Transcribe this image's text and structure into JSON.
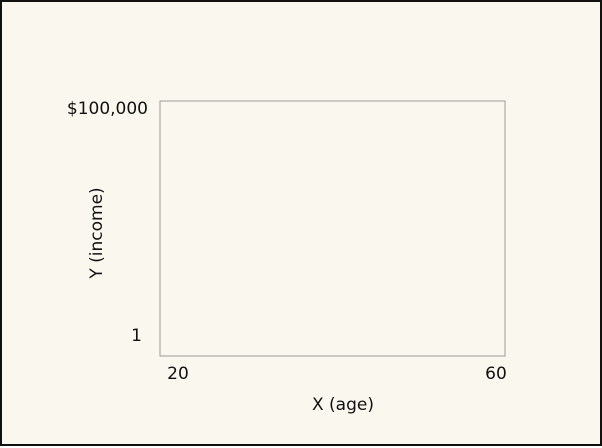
{
  "chart_data": {
    "type": "scatter",
    "xlabel": "X (age)",
    "ylabel": "Y (income)",
    "xlim": [
      20,
      60
    ],
    "ylim": [
      1,
      100000
    ],
    "x_ticks": [
      "20",
      "60"
    ],
    "y_ticks": [
      "1",
      "$100,000"
    ],
    "series": [],
    "grid": false,
    "legend": "none"
  }
}
